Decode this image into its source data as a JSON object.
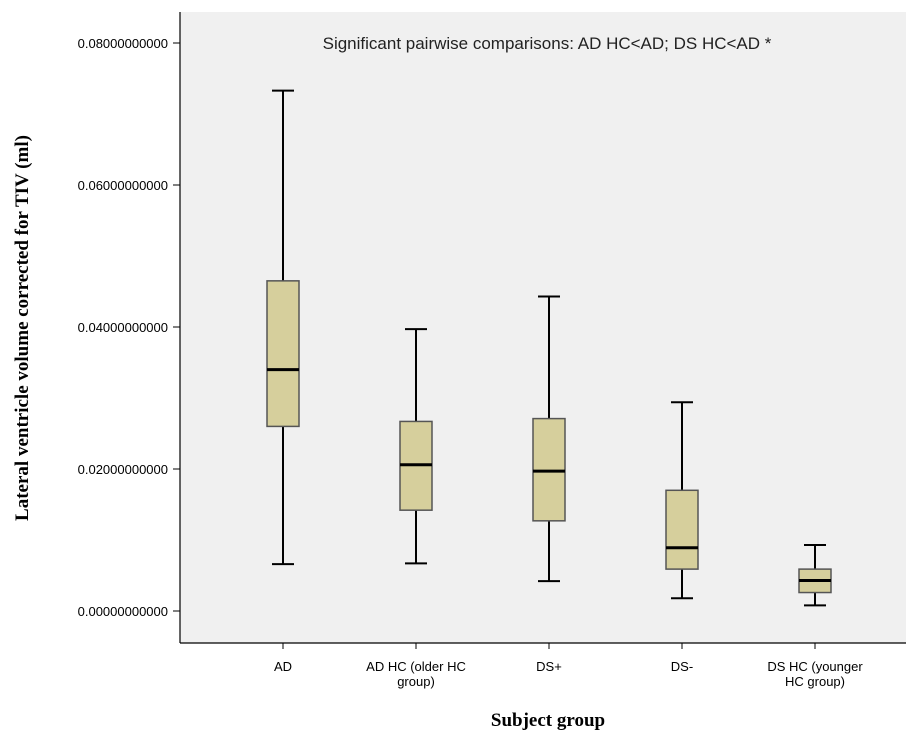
{
  "chart_data": {
    "type": "boxplot",
    "annotation": "Significant pairwise comparisons: AD HC<AD; DS HC<AD *",
    "xlabel": "Subject group",
    "ylabel": "Lateral ventricle volume corrected for TIV (ml)",
    "ylim": [
      -0.0044,
      0.085
    ],
    "yticks": [
      0.0,
      0.02,
      0.04,
      0.06,
      0.08
    ],
    "ytick_labels": [
      "0.00000000000",
      "0.02000000000",
      "0.04000000000",
      "0.06000000000",
      "0.08000000000"
    ],
    "categories": [
      {
        "lines": [
          "AD"
        ]
      },
      {
        "lines": [
          "AD HC (older HC",
          "group)"
        ]
      },
      {
        "lines": [
          "DS+"
        ]
      },
      {
        "lines": [
          "DS-"
        ]
      },
      {
        "lines": [
          "DS HC (younger",
          "HC group)"
        ]
      }
    ],
    "boxes": [
      {
        "min": 0.0066,
        "q1": 0.026,
        "median": 0.034,
        "q3": 0.0465,
        "max": 0.0733
      },
      {
        "min": 0.0067,
        "q1": 0.0142,
        "median": 0.0206,
        "q3": 0.0267,
        "max": 0.0397
      },
      {
        "min": 0.0042,
        "q1": 0.0127,
        "median": 0.0197,
        "q3": 0.0271,
        "max": 0.0443
      },
      {
        "min": 0.0018,
        "q1": 0.0059,
        "median": 0.0089,
        "q3": 0.017,
        "max": 0.0294
      },
      {
        "min": 0.0008,
        "q1": 0.0026,
        "median": 0.0043,
        "q3": 0.0059,
        "max": 0.0093
      }
    ],
    "colors": {
      "plot_background": "#f0f0f0",
      "box_fill": "#d6cf9c",
      "box_stroke": "#555555",
      "whisker": "#000000",
      "median": "#000000"
    }
  }
}
